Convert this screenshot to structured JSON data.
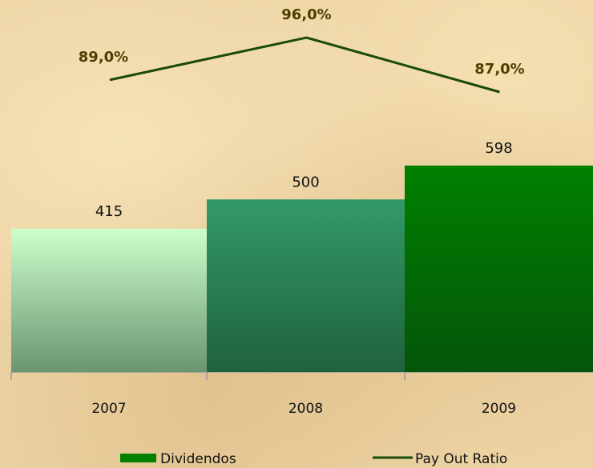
{
  "chart_data": {
    "type": "bar",
    "categories": [
      "2007",
      "2008",
      "2009"
    ],
    "series": [
      {
        "name": "Dividendos",
        "type": "bar",
        "color": "#008000",
        "colors": [
          "#ccffcc",
          "#339966",
          "#008000"
        ],
        "values": [
          415,
          500,
          598
        ]
      },
      {
        "name": "Pay Out Ratio",
        "type": "line",
        "color": "#1a4a0a",
        "label_color": "#4d3f00",
        "values": [
          89,
          96,
          87
        ],
        "value_labels": [
          "89,0%",
          "96,0%",
          "87,0%"
        ]
      }
    ]
  }
}
